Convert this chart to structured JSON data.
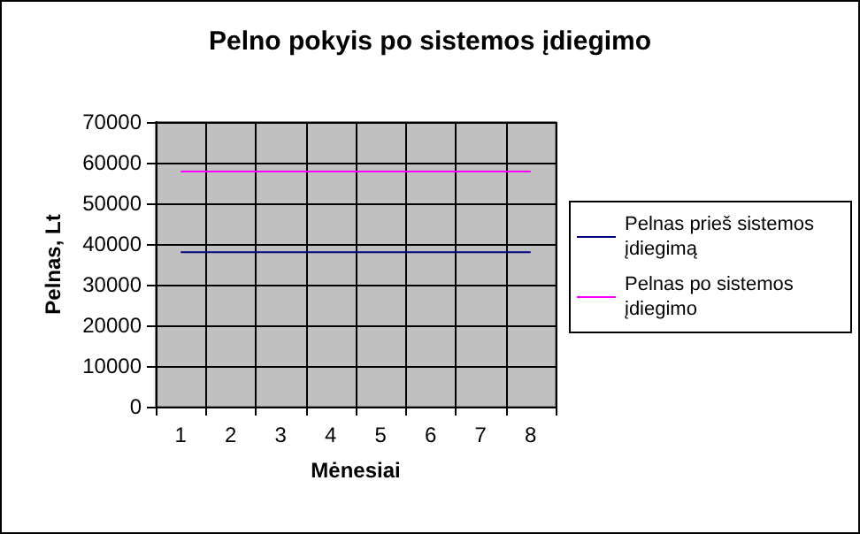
{
  "chart_data": {
    "type": "line",
    "title": "Pelno pokyis po sistemos įdiegimo",
    "xlabel": "Mėnesiai",
    "ylabel": "Pelnas, Lt",
    "categories": [
      "1",
      "2",
      "3",
      "4",
      "5",
      "6",
      "7",
      "8"
    ],
    "series": [
      {
        "name": "Pelnas prieš sistemos įdiegimą",
        "color": "#000080",
        "values": [
          38000,
          38000,
          38000,
          38000,
          38000,
          38000,
          38000,
          38000
        ]
      },
      {
        "name": "Pelnas po sistemos įdiegimo",
        "color": "#ff00ff",
        "values": [
          57800,
          57800,
          57800,
          57800,
          57800,
          57800,
          57800,
          57800
        ]
      }
    ],
    "ylim": [
      0,
      70000
    ],
    "yticks": [
      0,
      10000,
      20000,
      30000,
      40000,
      50000,
      60000,
      70000
    ],
    "grid": true,
    "legend": "right",
    "marker": "none",
    "line_style": "solid"
  }
}
